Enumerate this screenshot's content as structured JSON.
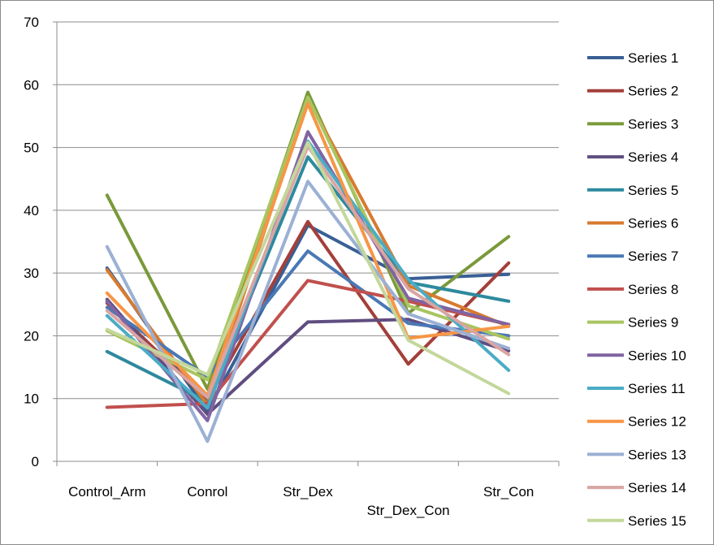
{
  "chart_data": {
    "type": "line",
    "title": "",
    "xlabel": "",
    "ylabel": "",
    "categories": [
      "Control_Arm",
      "Conrol",
      "Str_Dex",
      "Str_Dex_Con",
      "Str_Con"
    ],
    "ylim": [
      0,
      70
    ],
    "yticks": [
      0,
      10,
      20,
      30,
      40,
      50,
      60,
      70
    ],
    "grid": true,
    "legend_position": "right",
    "series": [
      {
        "name": "Series 1",
        "color": "#3a5f95",
        "values": [
          30.8,
          8.0,
          37.6,
          29.1,
          29.8
        ]
      },
      {
        "name": "Series 2",
        "color": "#a33f3a",
        "values": [
          25.2,
          9.8,
          38.2,
          15.5,
          31.6
        ]
      },
      {
        "name": "Series 3",
        "color": "#7a993a",
        "values": [
          42.4,
          11.5,
          58.8,
          23.6,
          35.8
        ]
      },
      {
        "name": "Series 4",
        "color": "#5f4d80",
        "values": [
          25.8,
          7.5,
          22.2,
          22.6,
          17.6
        ]
      },
      {
        "name": "Series 5",
        "color": "#2d8a9e",
        "values": [
          17.5,
          9.5,
          48.5,
          28.5,
          25.5
        ]
      },
      {
        "name": "Series 6",
        "color": "#d77a30",
        "values": [
          30.5,
          9.0,
          57.8,
          28.0,
          21.5
        ]
      },
      {
        "name": "Series 7",
        "color": "#4a78b5",
        "values": [
          24.5,
          13.5,
          33.5,
          22.0,
          20.0
        ]
      },
      {
        "name": "Series 8",
        "color": "#c0504d",
        "values": [
          8.6,
          9.2,
          28.8,
          25.5,
          21.8
        ]
      },
      {
        "name": "Series 9",
        "color": "#a9c560",
        "values": [
          20.8,
          13.0,
          58.0,
          24.8,
          19.5
        ]
      },
      {
        "name": "Series 10",
        "color": "#8064a2",
        "values": [
          25.5,
          6.5,
          52.5,
          26.0,
          21.8
        ]
      },
      {
        "name": "Series 11",
        "color": "#4bacc6",
        "values": [
          23.2,
          8.5,
          51.0,
          29.0,
          14.5
        ]
      },
      {
        "name": "Series 12",
        "color": "#f79646",
        "values": [
          26.8,
          10.5,
          57.0,
          19.6,
          21.5
        ]
      },
      {
        "name": "Series 13",
        "color": "#9bb0d4",
        "values": [
          34.2,
          3.2,
          44.6,
          23.5,
          18.0
        ]
      },
      {
        "name": "Series 14",
        "color": "#d9a5a3",
        "values": [
          24.0,
          10.2,
          50.2,
          27.5,
          17.0
        ]
      },
      {
        "name": "Series 15",
        "color": "#c4d79b",
        "values": [
          21.0,
          13.8,
          50.8,
          19.3,
          10.8
        ]
      }
    ]
  }
}
